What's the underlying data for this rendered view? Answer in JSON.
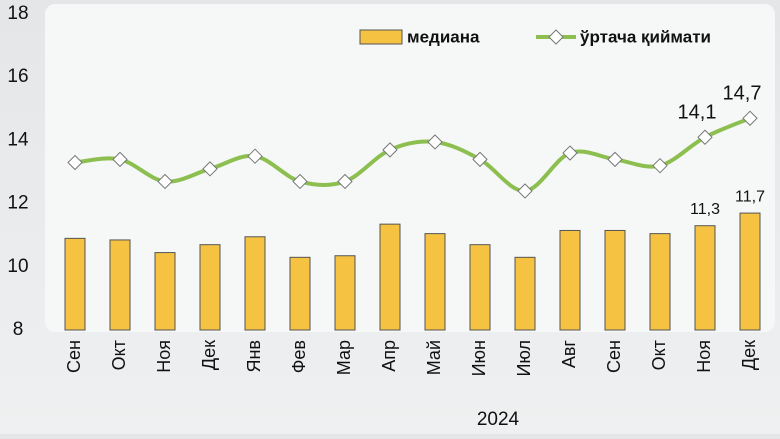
{
  "chart_data": {
    "type": "bar_line",
    "categories": [
      "Сен",
      "Окт",
      "Ноя",
      "Дек",
      "Янв",
      "Фев",
      "Мар",
      "Апр",
      "Май",
      "Июн",
      "Июл",
      "Авг",
      "Сен",
      "Окт",
      "Ноя",
      "Дек"
    ],
    "xlabel": "2024",
    "series": [
      {
        "name": "медиана",
        "type": "bar",
        "color": "#f5c242",
        "values": [
          10.9,
          10.85,
          10.45,
          10.7,
          10.95,
          10.3,
          10.35,
          11.35,
          11.05,
          10.7,
          10.3,
          11.15,
          11.15,
          11.05,
          11.3,
          11.7
        ],
        "value_labels": [
          null,
          null,
          null,
          null,
          null,
          null,
          null,
          null,
          null,
          null,
          null,
          null,
          null,
          null,
          "11,3",
          "11,7"
        ]
      },
      {
        "name": "ўртача қиймати",
        "type": "line",
        "color": "#8cbf4f",
        "values": [
          13.3,
          13.4,
          12.7,
          13.1,
          13.5,
          12.7,
          12.7,
          13.7,
          13.95,
          13.4,
          12.4,
          13.6,
          13.4,
          13.2,
          14.1,
          14.7
        ],
        "value_labels": [
          null,
          null,
          null,
          null,
          null,
          null,
          null,
          null,
          null,
          null,
          null,
          null,
          null,
          null,
          "14,1",
          "14,7"
        ]
      }
    ],
    "ylim": [
      8,
      18
    ],
    "yticks": [
      8,
      10,
      12,
      14,
      16,
      18
    ],
    "legend": "top-right"
  }
}
